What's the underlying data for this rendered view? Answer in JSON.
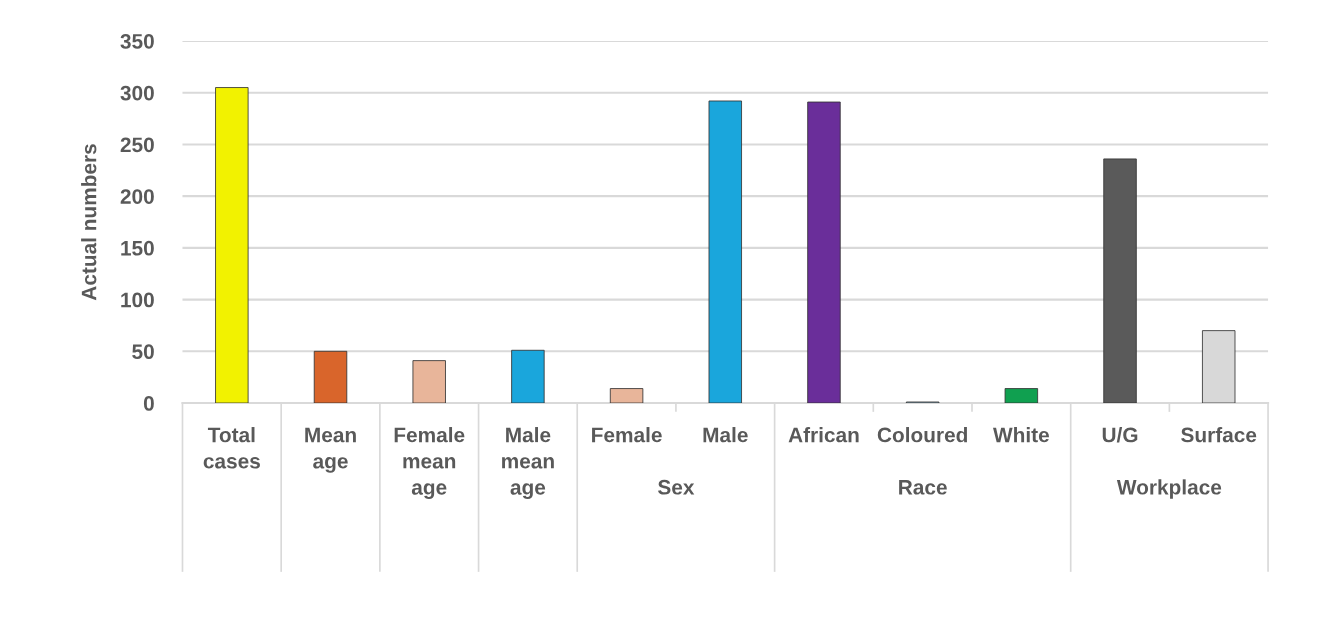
{
  "chart_data": {
    "type": "bar",
    "ylabel": "Actual numbers",
    "categories": [
      "Total cases",
      "Mean age",
      "Female mean age",
      "Male mean age",
      "Female",
      "Male",
      "African",
      "Coloured",
      "White",
      "U/G",
      "Surface"
    ],
    "values": [
      305,
      50,
      41,
      51,
      14,
      292,
      291,
      1,
      14,
      236,
      70
    ],
    "colors": [
      "#f2f200",
      "#d9652b",
      "#e8b59a",
      "#1aa6dc",
      "#e8b59a",
      "#1aa6dc",
      "#6a2e9a",
      "#8fb4c8",
      "#10a050",
      "#5a5a5a",
      "#d8d8d8"
    ],
    "annotations": [
      "Sex",
      "Race",
      "Workplace"
    ],
    "ylim": [
      0,
      350
    ],
    "yticks": [
      0,
      50,
      100,
      150,
      200,
      250,
      300,
      350
    ],
    "grid": "y"
  }
}
